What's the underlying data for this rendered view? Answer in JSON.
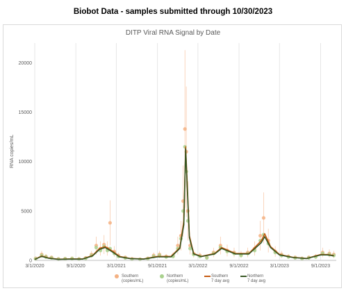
{
  "page_title": "Biobot Data - samples submitted through 10/30/2023",
  "chart_data": {
    "type": "scatter",
    "title": "DITP Viral RNA Signal by Date",
    "xlabel": "",
    "ylabel": "RNA copies/mL",
    "ylim": [
      0,
      22000
    ],
    "yticks": [
      0,
      5000,
      10000,
      15000,
      20000
    ],
    "xticks": [
      "3/1/2020",
      "9/1/2020",
      "3/1/2021",
      "9/1/2021",
      "3/1/2022",
      "9/1/2022",
      "3/1/2023",
      "9/1/2023"
    ],
    "xlim": [
      "2020-03-01",
      "2023-11-10"
    ],
    "grid": "vertical",
    "legend_position": "bottom",
    "colors": {
      "southern_dot": "#f4b183",
      "northern_dot": "#a9d18e",
      "southern_line": "#c55a11",
      "northern_line": "#375623",
      "error_bar": "#f8cbad"
    },
    "series": [
      {
        "name": "Southern (copies/mL)",
        "kind": "points",
        "x": [
          "2020-03-05",
          "2020-04-01",
          "2020-04-20",
          "2020-05-15",
          "2020-06-15",
          "2020-07-15",
          "2020-08-15",
          "2020-09-15",
          "2020-10-15",
          "2020-11-10",
          "2020-12-01",
          "2020-12-20",
          "2021-01-05",
          "2021-01-20",
          "2021-02-01",
          "2021-02-20",
          "2021-03-10",
          "2021-04-10",
          "2021-05-10",
          "2021-06-15",
          "2021-07-20",
          "2021-08-15",
          "2021-09-10",
          "2021-10-10",
          "2021-11-10",
          "2021-12-01",
          "2021-12-15",
          "2021-12-25",
          "2022-01-02",
          "2022-01-08",
          "2022-01-15",
          "2022-01-25",
          "2022-02-10",
          "2022-03-10",
          "2022-04-10",
          "2022-05-10",
          "2022-06-10",
          "2022-07-10",
          "2022-08-10",
          "2022-09-10",
          "2022-10-10",
          "2022-11-10",
          "2022-12-05",
          "2022-12-20",
          "2023-01-10",
          "2023-02-10",
          "2023-03-10",
          "2023-04-10",
          "2023-05-10",
          "2023-06-10",
          "2023-07-10",
          "2023-08-10",
          "2023-09-10",
          "2023-10-10",
          "2023-10-30"
        ],
        "y": [
          200,
          600,
          400,
          300,
          150,
          180,
          200,
          150,
          250,
          600,
          1500,
          1200,
          1600,
          1200,
          3800,
          900,
          500,
          300,
          150,
          120,
          200,
          500,
          600,
          400,
          500,
          1500,
          2500,
          6000,
          13300,
          11000,
          5000,
          1500,
          700,
          500,
          300,
          800,
          1500,
          1000,
          800,
          600,
          800,
          1200,
          2500,
          4300,
          2000,
          900,
          600,
          400,
          300,
          200,
          300,
          400,
          800,
          700,
          600
        ]
      },
      {
        "name": "Northern (copies/mL)",
        "kind": "points",
        "x": [
          "2020-03-05",
          "2020-04-01",
          "2020-04-20",
          "2020-05-15",
          "2020-06-15",
          "2020-07-15",
          "2020-08-15",
          "2020-09-15",
          "2020-10-15",
          "2020-11-10",
          "2020-12-01",
          "2020-12-20",
          "2021-01-05",
          "2021-01-20",
          "2021-02-01",
          "2021-02-20",
          "2021-03-10",
          "2021-04-10",
          "2021-05-10",
          "2021-06-15",
          "2021-07-20",
          "2021-08-15",
          "2021-09-10",
          "2021-10-10",
          "2021-11-10",
          "2021-12-01",
          "2021-12-15",
          "2021-12-25",
          "2022-01-02",
          "2022-01-08",
          "2022-01-15",
          "2022-01-25",
          "2022-02-10",
          "2022-03-10",
          "2022-04-10",
          "2022-05-10",
          "2022-06-10",
          "2022-07-10",
          "2022-08-10",
          "2022-09-10",
          "2022-10-10",
          "2022-11-10",
          "2022-12-05",
          "2022-12-20",
          "2023-01-10",
          "2023-02-10",
          "2023-03-10",
          "2023-04-10",
          "2023-05-10",
          "2023-06-10",
          "2023-07-10",
          "2023-08-10",
          "2023-09-10",
          "2023-10-10",
          "2023-10-30"
        ],
        "y": [
          150,
          500,
          350,
          250,
          120,
          150,
          180,
          120,
          200,
          500,
          1300,
          1000,
          1400,
          1000,
          1200,
          700,
          400,
          250,
          120,
          100,
          180,
          400,
          500,
          350,
          400,
          1200,
          2200,
          5000,
          11500,
          9000,
          4000,
          1200,
          600,
          400,
          250,
          700,
          1300,
          900,
          700,
          500,
          700,
          1000,
          2000,
          2600,
          1700,
          800,
          500,
          350,
          250,
          180,
          250,
          350,
          700,
          600,
          500
        ]
      },
      {
        "name": "Southern 7 day avg",
        "kind": "line",
        "x": [
          "2020-03-01",
          "2020-04-01",
          "2020-05-01",
          "2020-06-15",
          "2020-08-01",
          "2020-10-01",
          "2020-11-15",
          "2020-12-15",
          "2021-01-10",
          "2021-02-15",
          "2021-03-15",
          "2021-05-01",
          "2021-07-01",
          "2021-09-01",
          "2021-11-01",
          "2021-12-10",
          "2021-12-28",
          "2022-01-05",
          "2022-01-12",
          "2022-01-22",
          "2022-02-10",
          "2022-03-15",
          "2022-05-15",
          "2022-06-15",
          "2022-08-15",
          "2022-10-15",
          "2022-12-10",
          "2022-12-25",
          "2023-01-20",
          "2023-03-01",
          "2023-05-01",
          "2023-07-01",
          "2023-09-01",
          "2023-10-01",
          "2023-10-30"
        ],
        "y": [
          100,
          450,
          250,
          120,
          150,
          150,
          500,
          1200,
          1400,
          900,
          400,
          200,
          150,
          400,
          400,
          1300,
          4000,
          11500,
          8000,
          2500,
          700,
          400,
          700,
          1300,
          700,
          700,
          2000,
          2700,
          1400,
          600,
          300,
          200,
          600,
          600,
          500
        ]
      },
      {
        "name": "Northern 7 day avg",
        "kind": "line",
        "x": [
          "2020-03-01",
          "2020-04-01",
          "2020-05-01",
          "2020-06-15",
          "2020-08-01",
          "2020-10-01",
          "2020-11-15",
          "2020-12-15",
          "2021-01-10",
          "2021-02-15",
          "2021-03-15",
          "2021-05-01",
          "2021-07-01",
          "2021-09-01",
          "2021-11-01",
          "2021-12-10",
          "2021-12-28",
          "2022-01-05",
          "2022-01-12",
          "2022-01-22",
          "2022-02-10",
          "2022-03-15",
          "2022-05-15",
          "2022-06-15",
          "2022-08-15",
          "2022-10-15",
          "2022-12-10",
          "2022-12-25",
          "2023-01-20",
          "2023-03-01",
          "2023-05-01",
          "2023-07-01",
          "2023-09-01",
          "2023-10-01",
          "2023-10-30"
        ],
        "y": [
          90,
          400,
          220,
          100,
          130,
          130,
          450,
          1100,
          1300,
          800,
          350,
          180,
          130,
          350,
          350,
          1200,
          3600,
          11300,
          7500,
          2300,
          650,
          380,
          650,
          1200,
          650,
          650,
          1800,
          2400,
          1300,
          550,
          280,
          180,
          550,
          550,
          450
        ]
      }
    ]
  },
  "legend": [
    {
      "label_line1": "Southern",
      "label_line2": "(copies/mL)"
    },
    {
      "label_line1": "Northern",
      "label_line2": "(copies/mL)"
    },
    {
      "label_line1": "Southern",
      "label_line2": "7 day avg"
    },
    {
      "label_line1": "Northern",
      "label_line2": "7 day avg"
    }
  ]
}
